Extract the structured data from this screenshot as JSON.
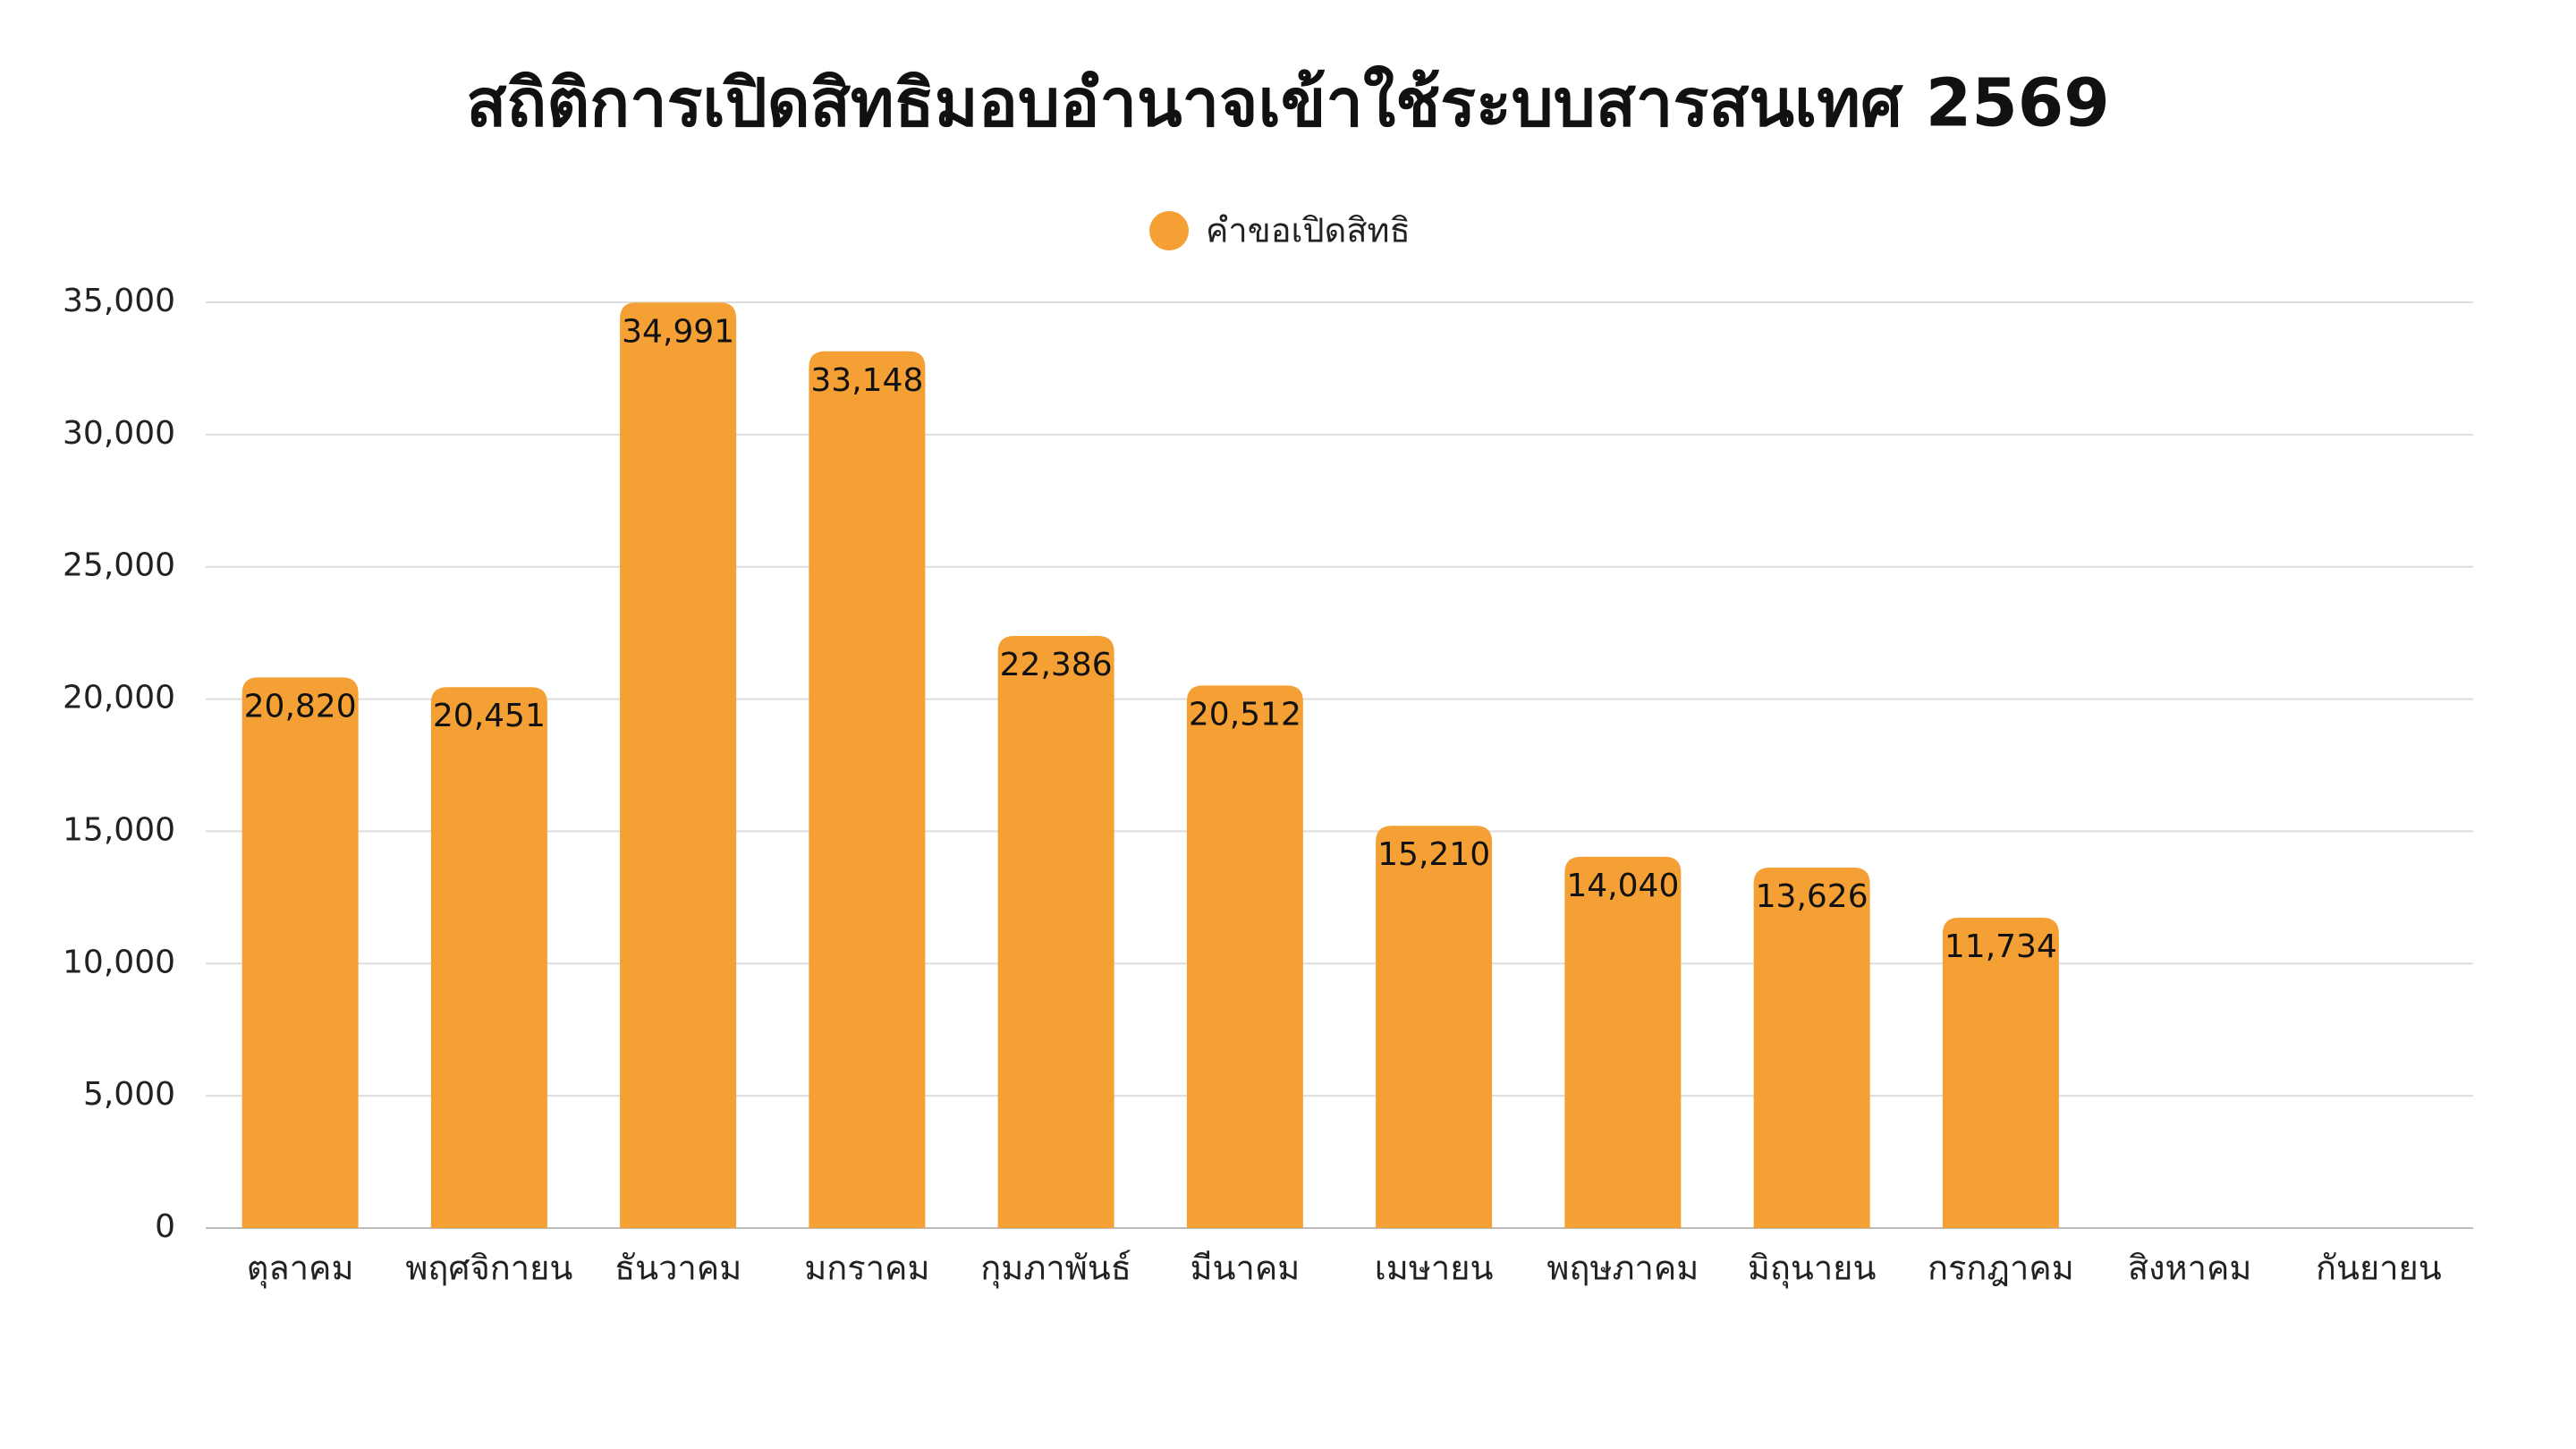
{
  "chart_data": {
    "type": "bar",
    "title": "สถิติการเปิดสิทธิมอบอำนาจเข้าใช้ระบบสารสนเทศ 2569",
    "categories": [
      "ตุลาคม",
      "พฤศจิกายน",
      "ธันวาคม",
      "มกราคม",
      "กุมภาพันธ์",
      "มีนาคม",
      "เมษายน",
      "พฤษภาคม",
      "มิถุนายน",
      "กรกฎาคม",
      "สิงหาคม",
      "กันยายน"
    ],
    "series": [
      {
        "name": "คำขอเปิดสิทธิ",
        "color": "#f4a034",
        "values": [
          20820,
          20451,
          34991,
          33148,
          22386,
          20512,
          15210,
          14040,
          13626,
          11734,
          null,
          null
        ],
        "value_labels": [
          "20,820",
          "20,451",
          "34,991",
          "33,148",
          "22,386",
          "20,512",
          "15,210",
          "14,040",
          "13,626",
          "11,734",
          null,
          null
        ]
      }
    ],
    "ylim": [
      0,
      35000
    ],
    "yticks": [
      0,
      {
        "value": 5000,
        "label": "5,000"
      },
      {
        "value": 10000,
        "label": "10,000"
      },
      {
        "value": 15000,
        "label": "15,000"
      },
      {
        "value": 20000,
        "label": "20,000"
      },
      {
        "value": 25000,
        "label": "25,000"
      },
      {
        "value": 30000,
        "label": "30,000"
      },
      {
        "value": 35000,
        "label": "35,000"
      }
    ],
    "grid": true,
    "legend": "top"
  }
}
